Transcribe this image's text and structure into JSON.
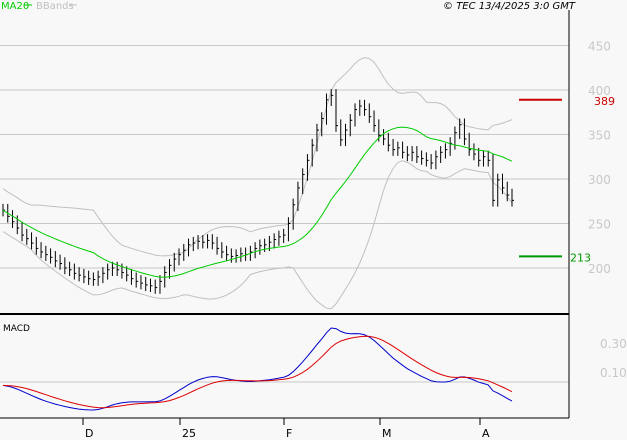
{
  "header": {
    "ma_legend": "MA20",
    "bb_legend": "BBands",
    "copyright": "© TEC 13/4/2025 3:0 GMT"
  },
  "colors": {
    "ma": "#00cc00",
    "bbands": "#c0c0c0",
    "resistance": "#cc0000",
    "support": "#009900",
    "macd": "#0000cc",
    "signal": "#dd0000",
    "bars": "#000000",
    "grid": "#c8c8c8"
  },
  "chart_data": [
    {
      "type": "line",
      "title": "",
      "y_ticks": [
        "200",
        "250",
        "300",
        "350",
        "400",
        "450"
      ],
      "ylim": [
        150,
        460
      ],
      "x_ticks": [
        "D",
        "25",
        "F",
        "M",
        "A"
      ],
      "closes": [
        265,
        258,
        252,
        245,
        237,
        233,
        228,
        222,
        218,
        215,
        212,
        208,
        205,
        200,
        198,
        194,
        192,
        190,
        188,
        187,
        190,
        194,
        198,
        200,
        198,
        195,
        192,
        188,
        185,
        183,
        181,
        180,
        178,
        185,
        195,
        203,
        210,
        215,
        220,
        226,
        228,
        230,
        229,
        231,
        228,
        222,
        218,
        215,
        213,
        214,
        216,
        215,
        218,
        222,
        225,
        226,
        229,
        232,
        235,
        237,
        250,
        271,
        290,
        305,
        321,
        338,
        355,
        368,
        389,
        394,
        360,
        344,
        355,
        366,
        378,
        382,
        378,
        370,
        360,
        349,
        345,
        338,
        333,
        335,
        330,
        327,
        330,
        325,
        323,
        321,
        318,
        325,
        330,
        333,
        340,
        352,
        361,
        345,
        333,
        328,
        321,
        325,
        321,
        276,
        299,
        290,
        282,
        276
      ],
      "resistance": {
        "value": 389,
        "label": "389"
      },
      "support": {
        "value": 213,
        "label": "213"
      },
      "indicators": [
        "MA20",
        "BBands"
      ]
    },
    {
      "type": "line",
      "title": "MACD",
      "y_ticks": [
        "0.30",
        "0.10"
      ],
      "series": [
        "macd",
        "signal"
      ]
    }
  ]
}
